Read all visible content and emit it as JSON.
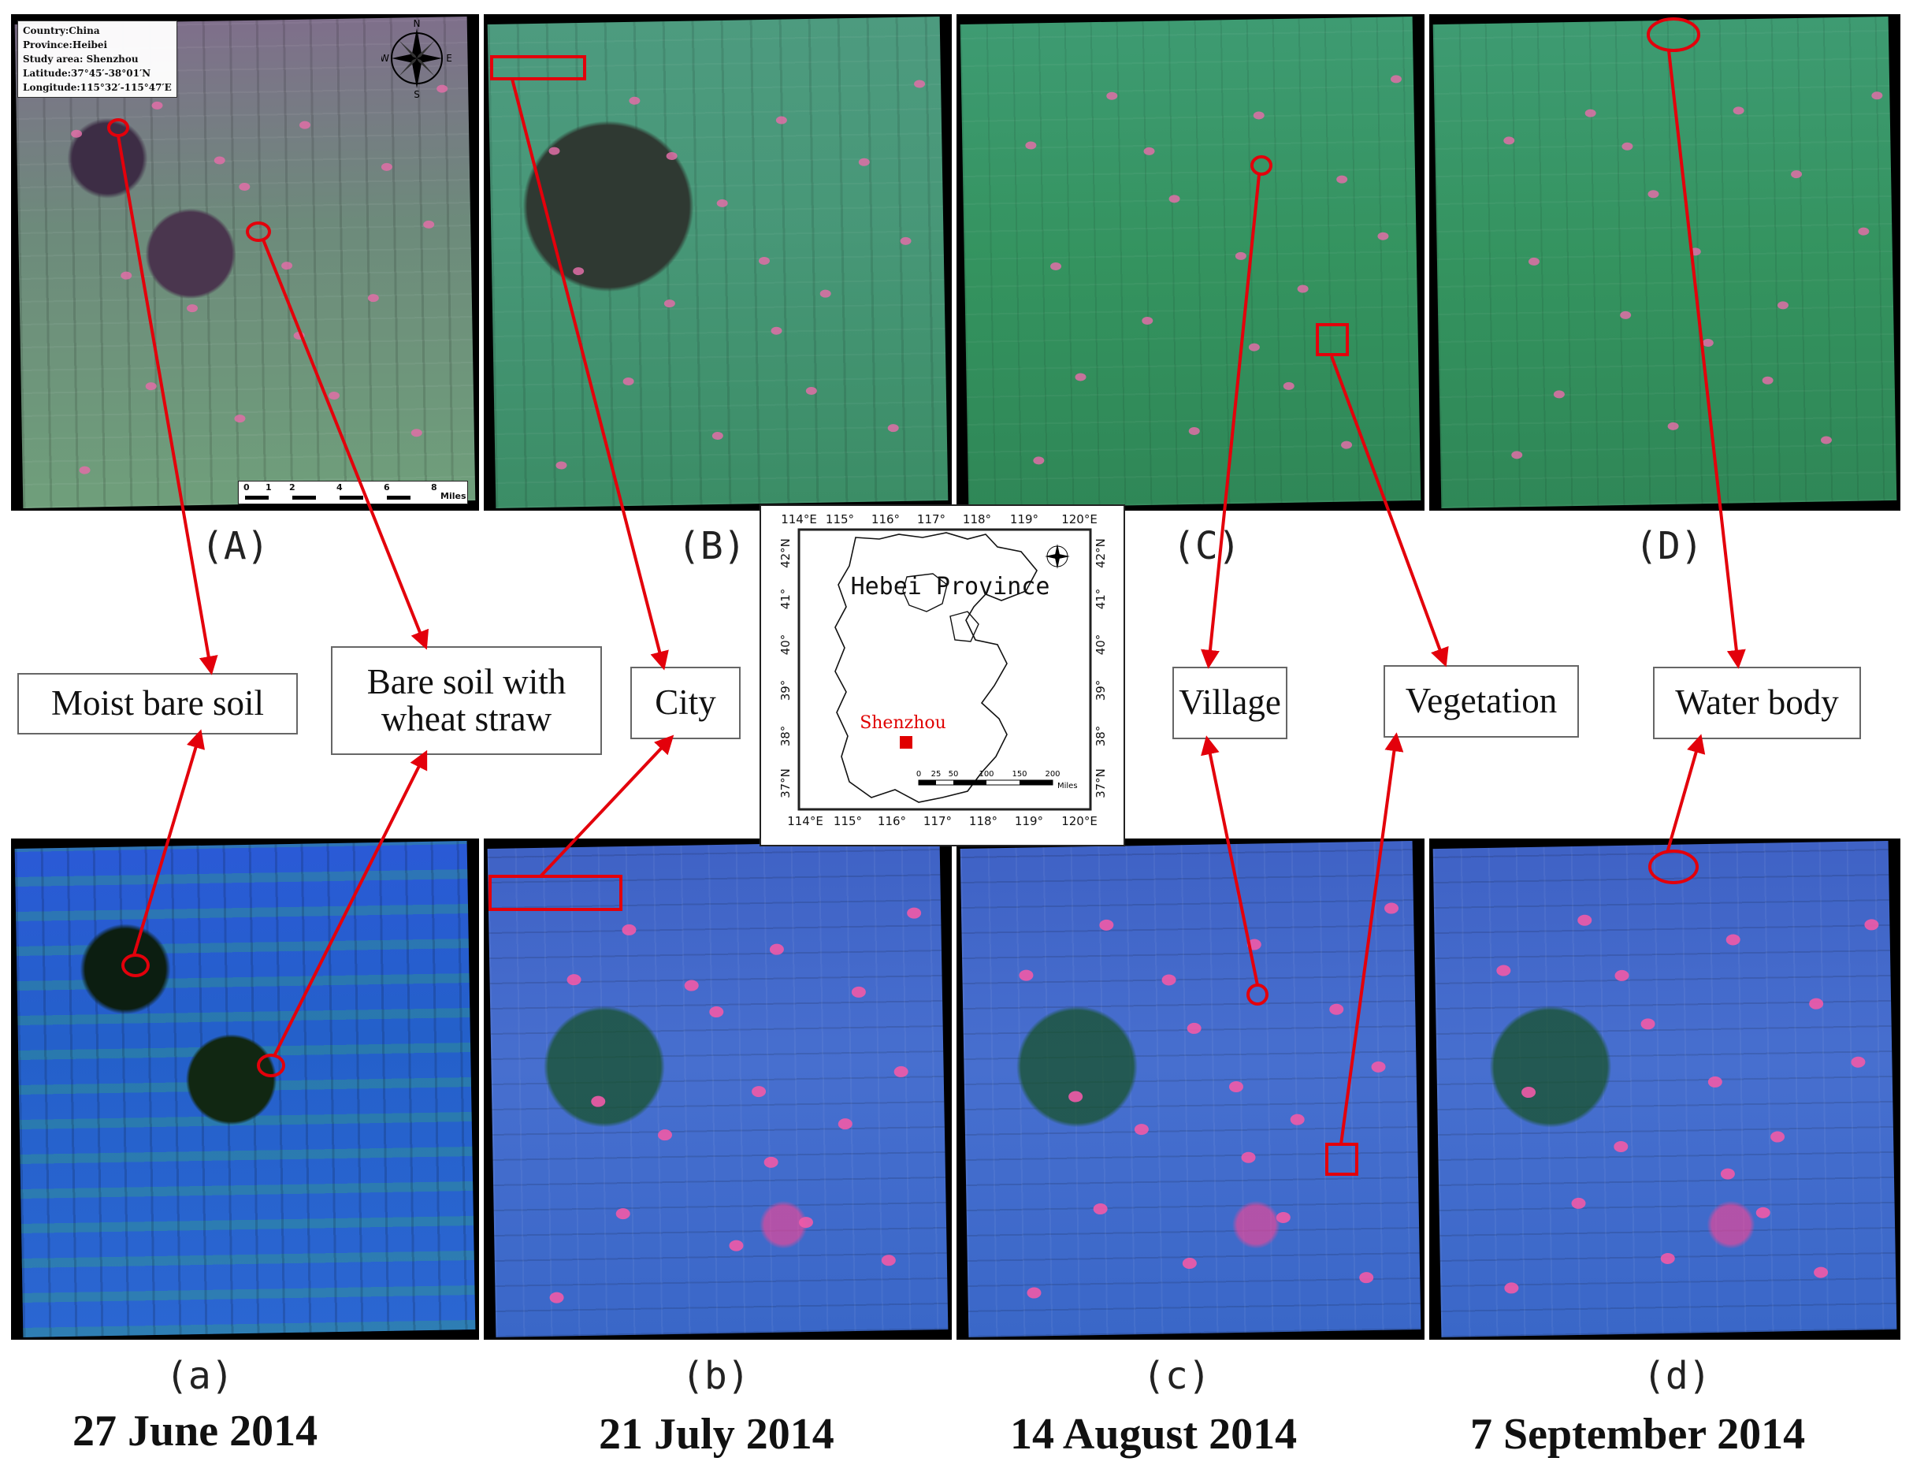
{
  "top_panels": [
    {
      "label": "(A)"
    },
    {
      "label": "(B)"
    },
    {
      "label": "(C)"
    },
    {
      "label": "(D)"
    }
  ],
  "bottom_panels": [
    {
      "label": "(a)",
      "date": "27 June 2014"
    },
    {
      "label": "(b)",
      "date": "21 July 2014"
    },
    {
      "label": "(c)",
      "date": "14 August 2014"
    },
    {
      "label": "(d)",
      "date": "7 September 2014"
    }
  ],
  "info_box": {
    "country": "Country:China",
    "province": "Province:Heibei",
    "study_area": "Study area: Shenzhou",
    "latitude": "Latitude:37°45′-38°01′N",
    "longitude": "Longitude:115°32′-115°47′E"
  },
  "scale_bar": {
    "ticks": [
      "0",
      "1",
      "2",
      "4",
      "6",
      "8"
    ],
    "unit": "Miles"
  },
  "compass": {
    "n": "N",
    "s": "S",
    "e": "E",
    "w": "W"
  },
  "classes": [
    {
      "key": "moist_bare_soil",
      "text": "Moist bare soil"
    },
    {
      "key": "bare_soil_wheat_straw_line1",
      "text": "Bare soil with"
    },
    {
      "key": "bare_soil_wheat_straw_line2",
      "text": "wheat straw"
    },
    {
      "key": "city",
      "text": "City"
    },
    {
      "key": "village",
      "text": "Village"
    },
    {
      "key": "vegetation",
      "text": "Vegetation"
    },
    {
      "key": "water_body",
      "text": "Water body"
    }
  ],
  "inset_map": {
    "title": "Hebei Province",
    "site": "Shenzhou",
    "lon_ticks": [
      "114°E",
      "115°",
      "116°",
      "117°",
      "118°",
      "119°",
      "120°E"
    ],
    "lat_ticks": [
      "42°N",
      "41°",
      "40°",
      "39°",
      "38°",
      "37°N"
    ],
    "scale_ticks": [
      "0",
      "25",
      "50",
      "100",
      "150",
      "200"
    ],
    "scale_unit": "Miles",
    "site_color": "#e00000"
  },
  "annotation_color": "#e3000b"
}
